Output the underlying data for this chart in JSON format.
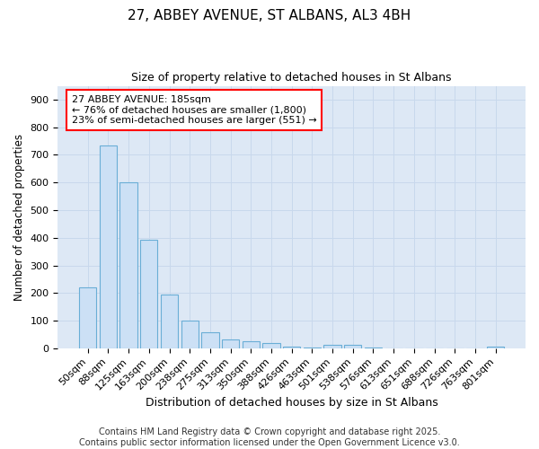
{
  "title_line1": "27, ABBEY AVENUE, ST ALBANS, AL3 4BH",
  "title_line2": "Size of property relative to detached houses in St Albans",
  "xlabel": "Distribution of detached houses by size in St Albans",
  "ylabel": "Number of detached properties",
  "categories": [
    "50sqm",
    "88sqm",
    "125sqm",
    "163sqm",
    "200sqm",
    "238sqm",
    "275sqm",
    "313sqm",
    "350sqm",
    "388sqm",
    "426sqm",
    "463sqm",
    "501sqm",
    "538sqm",
    "576sqm",
    "613sqm",
    "651sqm",
    "688sqm",
    "726sqm",
    "763sqm",
    "801sqm"
  ],
  "values": [
    220,
    735,
    600,
    393,
    195,
    100,
    57,
    32,
    27,
    18,
    5,
    2,
    11,
    11,
    3,
    0,
    0,
    0,
    0,
    0,
    7
  ],
  "bar_color": "#cce0f5",
  "bar_edge_color": "#6aaed6",
  "bar_edge_width": 0.8,
  "annotation_text": "27 ABBEY AVENUE: 185sqm\n← 76% of detached houses are smaller (1,800)\n23% of semi-detached houses are larger (551) →",
  "annotation_fontsize": 8,
  "annotation_box_color": "white",
  "annotation_box_edgecolor": "red",
  "ylim": [
    0,
    950
  ],
  "yticks": [
    0,
    100,
    200,
    300,
    400,
    500,
    600,
    700,
    800,
    900
  ],
  "grid_color": "#c8d8ec",
  "background_color": "#dde8f5",
  "footer_text": "Contains HM Land Registry data © Crown copyright and database right 2025.\nContains public sector information licensed under the Open Government Licence v3.0.",
  "footer_fontsize": 7,
  "title_fontsize1": 11,
  "title_fontsize2": 9,
  "xlabel_fontsize": 9,
  "ylabel_fontsize": 8.5,
  "tick_fontsize": 8
}
